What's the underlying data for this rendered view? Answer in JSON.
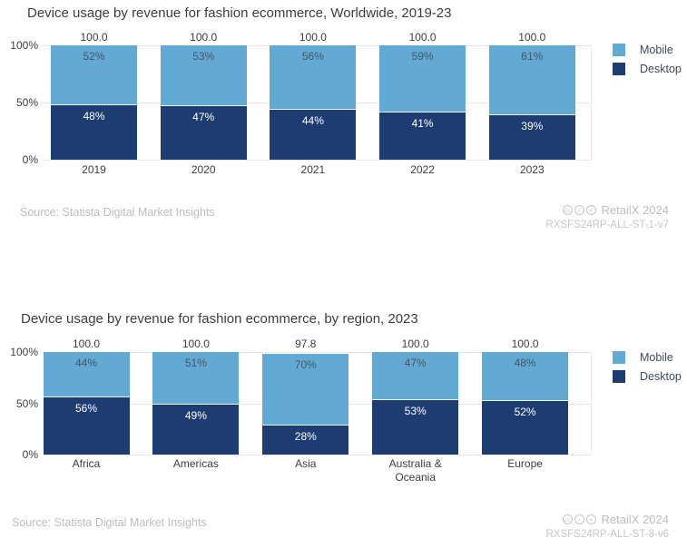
{
  "palette": {
    "mobile": "#62a9d3",
    "desktop": "#1d3c72",
    "grid": "#e8e8e8",
    "axis_text": "#3d3d3d",
    "mobile_label_text": "#44546b",
    "desktop_label_text": "#ffffff",
    "muted_text": "#bdbdbd"
  },
  "footer_icons": [
    {
      "name": "cc-icon",
      "glyph": "cc"
    },
    {
      "name": "cc-by-icon",
      "glyph": "i"
    },
    {
      "name": "cc-nd-icon",
      "glyph": "="
    }
  ],
  "chart_data": [
    {
      "type": "bar",
      "stacked": true,
      "title": "Device usage by revenue for fashion ecommerce, Worldwide, 2019-23",
      "categories": [
        "2019",
        "2020",
        "2021",
        "2022",
        "2023"
      ],
      "series": [
        {
          "name": "Mobile",
          "values": [
            52,
            53,
            56,
            59,
            61
          ],
          "color": "#62a9d3"
        },
        {
          "name": "Desktop",
          "values": [
            48,
            47,
            44,
            41,
            39
          ],
          "color": "#1d3c72"
        }
      ],
      "totals": [
        "100.0",
        "100.0",
        "100.0",
        "100.0",
        "100.0"
      ],
      "yticks": [
        "100%",
        "50%",
        "0%"
      ],
      "ylim": [
        0,
        100
      ],
      "grid": true,
      "legend_position": "right",
      "source": "Source: Statista Digital Market Insights",
      "brand": "RetailX 2024",
      "ref_code": "RXSFS24RP-ALL-ST-1-v7"
    },
    {
      "type": "bar",
      "stacked": true,
      "title": "Device usage by revenue for fashion ecommerce, by region, 2023",
      "categories": [
        "Africa",
        "Americas",
        "Asia",
        "Australia & Oceania",
        "Europe"
      ],
      "series": [
        {
          "name": "Mobile",
          "values": [
            44,
            51,
            70,
            47,
            48
          ],
          "color": "#62a9d3"
        },
        {
          "name": "Desktop",
          "values": [
            56,
            49,
            28,
            53,
            52
          ],
          "color": "#1d3c72"
        }
      ],
      "totals": [
        "100.0",
        "100.0",
        "97.8",
        "100.0",
        "100.0"
      ],
      "yticks": [
        "100%",
        "50%",
        "0%"
      ],
      "ylim": [
        0,
        100
      ],
      "grid": true,
      "legend_position": "right",
      "source": "Source: Statista Digital Market Insights",
      "brand": "RetailX 2024",
      "ref_code": "RXSFS24RP-ALL-ST-8-v6"
    }
  ]
}
